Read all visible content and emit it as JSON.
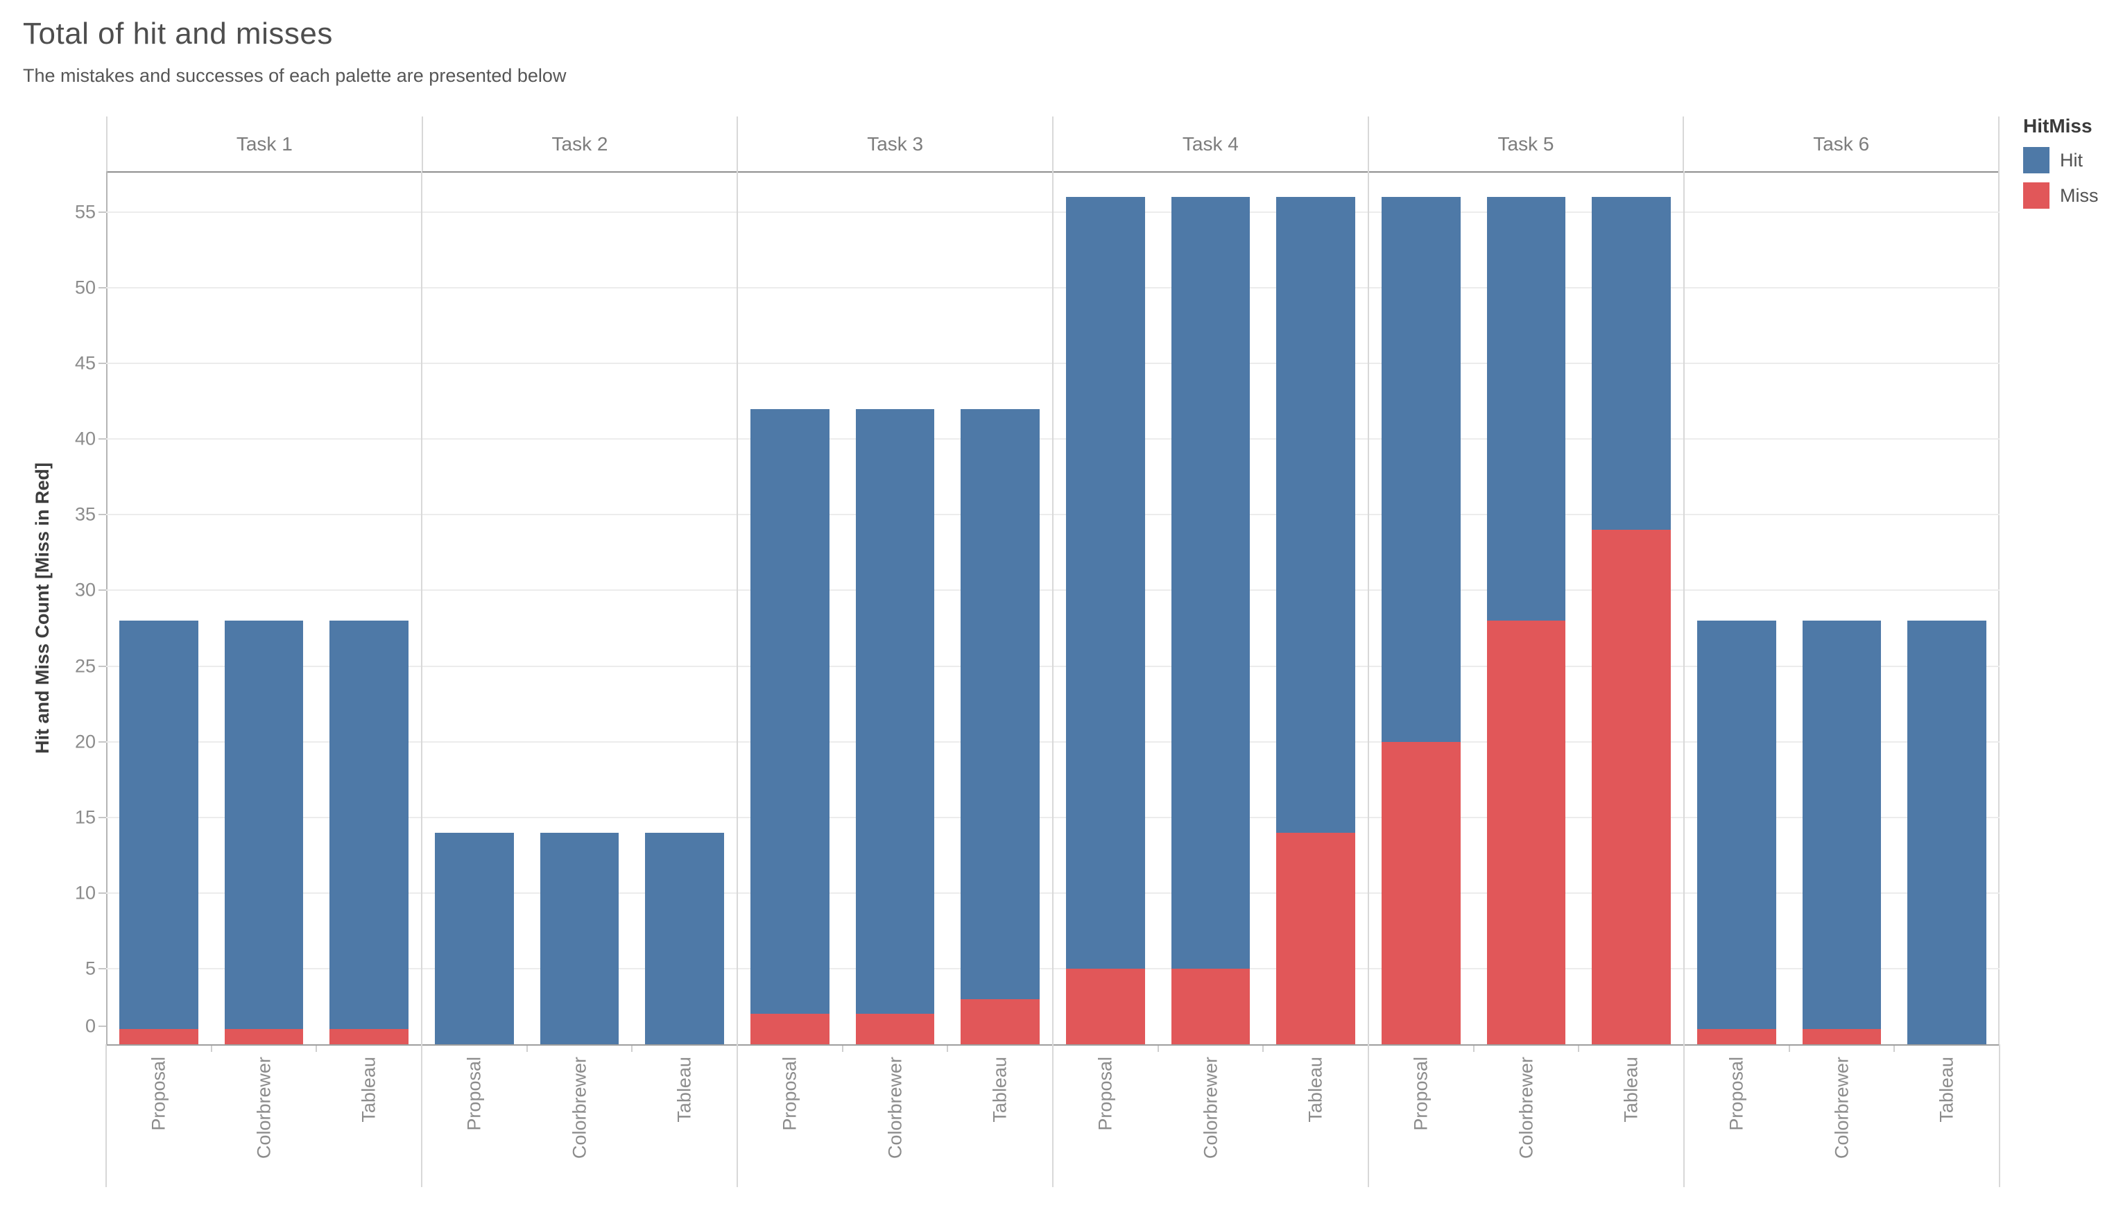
{
  "title": "Total of hit and misses",
  "subtitle": "The mistakes and successes of each palette are presented below",
  "legend": {
    "title": "HitMiss",
    "items": [
      {
        "label": "Hit",
        "color": "#4e79a7"
      },
      {
        "label": "Miss",
        "color": "#e15759"
      }
    ]
  },
  "chart_data": {
    "type": "bar",
    "stacked": true,
    "title": "Total of hit and misses",
    "subtitle": "The mistakes and successes of each palette are presented below",
    "facets": [
      "Task 1",
      "Task 2",
      "Task 3",
      "Task 4",
      "Task 5",
      "Task 6"
    ],
    "categories": [
      "Proposal",
      "Colorbrewer",
      "Tableau"
    ],
    "series": [
      {
        "name": "Hit",
        "color": "#4e79a7",
        "values": [
          [
            27,
            27,
            27
          ],
          [
            14,
            14,
            14
          ],
          [
            40,
            40,
            39
          ],
          [
            51,
            51,
            42
          ],
          [
            36,
            28,
            22
          ],
          [
            27,
            27,
            28
          ]
        ]
      },
      {
        "name": "Miss",
        "color": "#e15759",
        "values": [
          [
            1,
            1,
            1
          ],
          [
            0,
            0,
            0
          ],
          [
            2,
            2,
            3
          ],
          [
            5,
            5,
            14
          ],
          [
            20,
            28,
            34
          ],
          [
            1,
            1,
            0
          ]
        ]
      }
    ],
    "totals": [
      [
        28,
        28,
        28
      ],
      [
        14,
        14,
        14
      ],
      [
        42,
        42,
        42
      ],
      [
        56,
        56,
        56
      ],
      [
        56,
        56,
        56
      ],
      [
        28,
        28,
        28
      ]
    ],
    "xlabel": "",
    "ylabel": "Hit and Miss Count [Miss in Red]",
    "yticks": [
      0,
      5,
      10,
      15,
      20,
      25,
      30,
      35,
      40,
      45,
      50,
      55
    ],
    "ylim": [
      0,
      57.7
    ],
    "grid": true,
    "legend_position": "top-right"
  }
}
